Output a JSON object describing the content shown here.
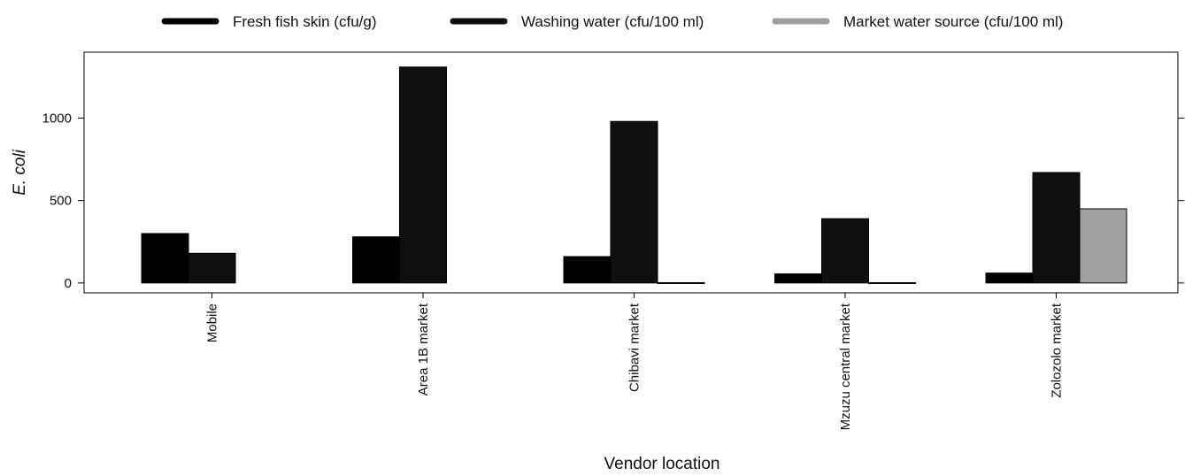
{
  "chart_data": {
    "type": "bar",
    "title": "",
    "xlabel": "Vendor location",
    "ylabel": "E. coli",
    "categories": [
      "Mobile",
      "Area 1B market",
      "Chibavi market",
      "Mzuzu central market",
      "Zolozolo market"
    ],
    "series": [
      {
        "name": "Fresh fish skin (cfu/g)",
        "color": "#000000",
        "values": [
          300,
          280,
          160,
          55,
          60
        ]
      },
      {
        "name": "Washing water (cfu/100 ml)",
        "color": "#101010",
        "values": [
          180,
          1310,
          980,
          390,
          670
        ]
      },
      {
        "name": "Market water source (cfu/100 ml)",
        "color": "#a0a0a0",
        "values": [
          null,
          null,
          2,
          2,
          450
        ]
      }
    ],
    "yticks": [
      0,
      500,
      1000
    ],
    "ylim": [
      -60,
      1400
    ],
    "legend_position": "top",
    "grid": false
  }
}
